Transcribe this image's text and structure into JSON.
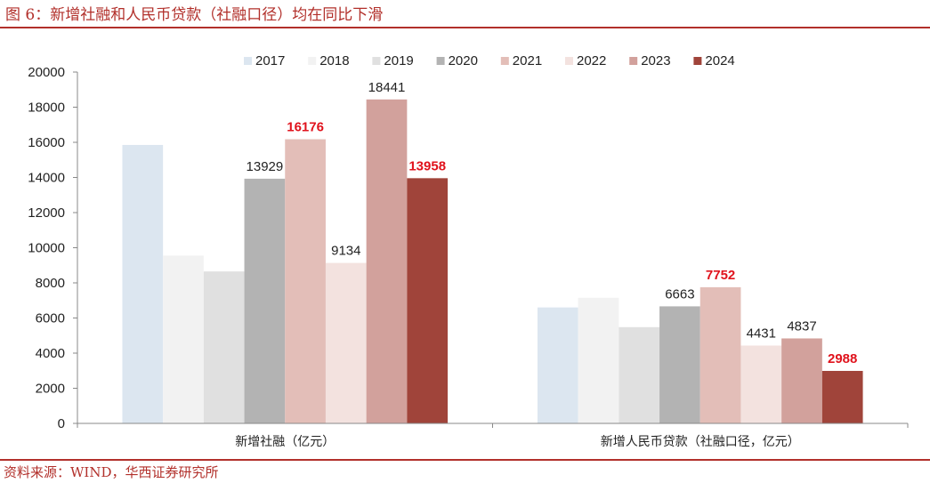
{
  "figure": {
    "title": "图 6：新增社融和人民币贷款（社融口径）均在同比下滑",
    "source": "资料来源：WIND，华西证券研究所"
  },
  "chart_data": {
    "type": "bar",
    "categories": [
      "新增社融（亿元）",
      "新增人民币贷款（社融口径，亿元）"
    ],
    "series": [
      {
        "name": "2017",
        "color": "#dce6f0",
        "values": [
          15850,
          6600
        ],
        "labels": [
          "",
          ""
        ]
      },
      {
        "name": "2018",
        "color": "#f2f2f2",
        "values": [
          9550,
          7150
        ],
        "labels": [
          "",
          ""
        ]
      },
      {
        "name": "2019",
        "color": "#e0e0e0",
        "values": [
          8650,
          5480
        ],
        "labels": [
          "",
          ""
        ]
      },
      {
        "name": "2020",
        "color": "#b3b3b3",
        "values": [
          13929,
          6663
        ],
        "labels": [
          "13929",
          "6663"
        ]
      },
      {
        "name": "2021",
        "color": "#e3beb8",
        "values": [
          16176,
          7752
        ],
        "labels": [
          "16176",
          "7752"
        ],
        "highlight": [
          true,
          true
        ]
      },
      {
        "name": "2022",
        "color": "#f3e2df",
        "values": [
          9134,
          4431
        ],
        "labels": [
          "9134",
          "4431"
        ]
      },
      {
        "name": "2023",
        "color": "#d2a19c",
        "values": [
          18441,
          4837
        ],
        "labels": [
          "18441",
          "4837"
        ]
      },
      {
        "name": "2024",
        "color": "#a0443a",
        "values": [
          13958,
          2988
        ],
        "labels": [
          "13958",
          "2988"
        ],
        "highlight": [
          true,
          true
        ]
      }
    ],
    "ylim": [
      0,
      20000
    ],
    "yticks": [
      "0",
      "2000",
      "4000",
      "6000",
      "8000",
      "10000",
      "12000",
      "14000",
      "16000",
      "18000",
      "20000"
    ],
    "legend": "top-center",
    "grid": false
  }
}
